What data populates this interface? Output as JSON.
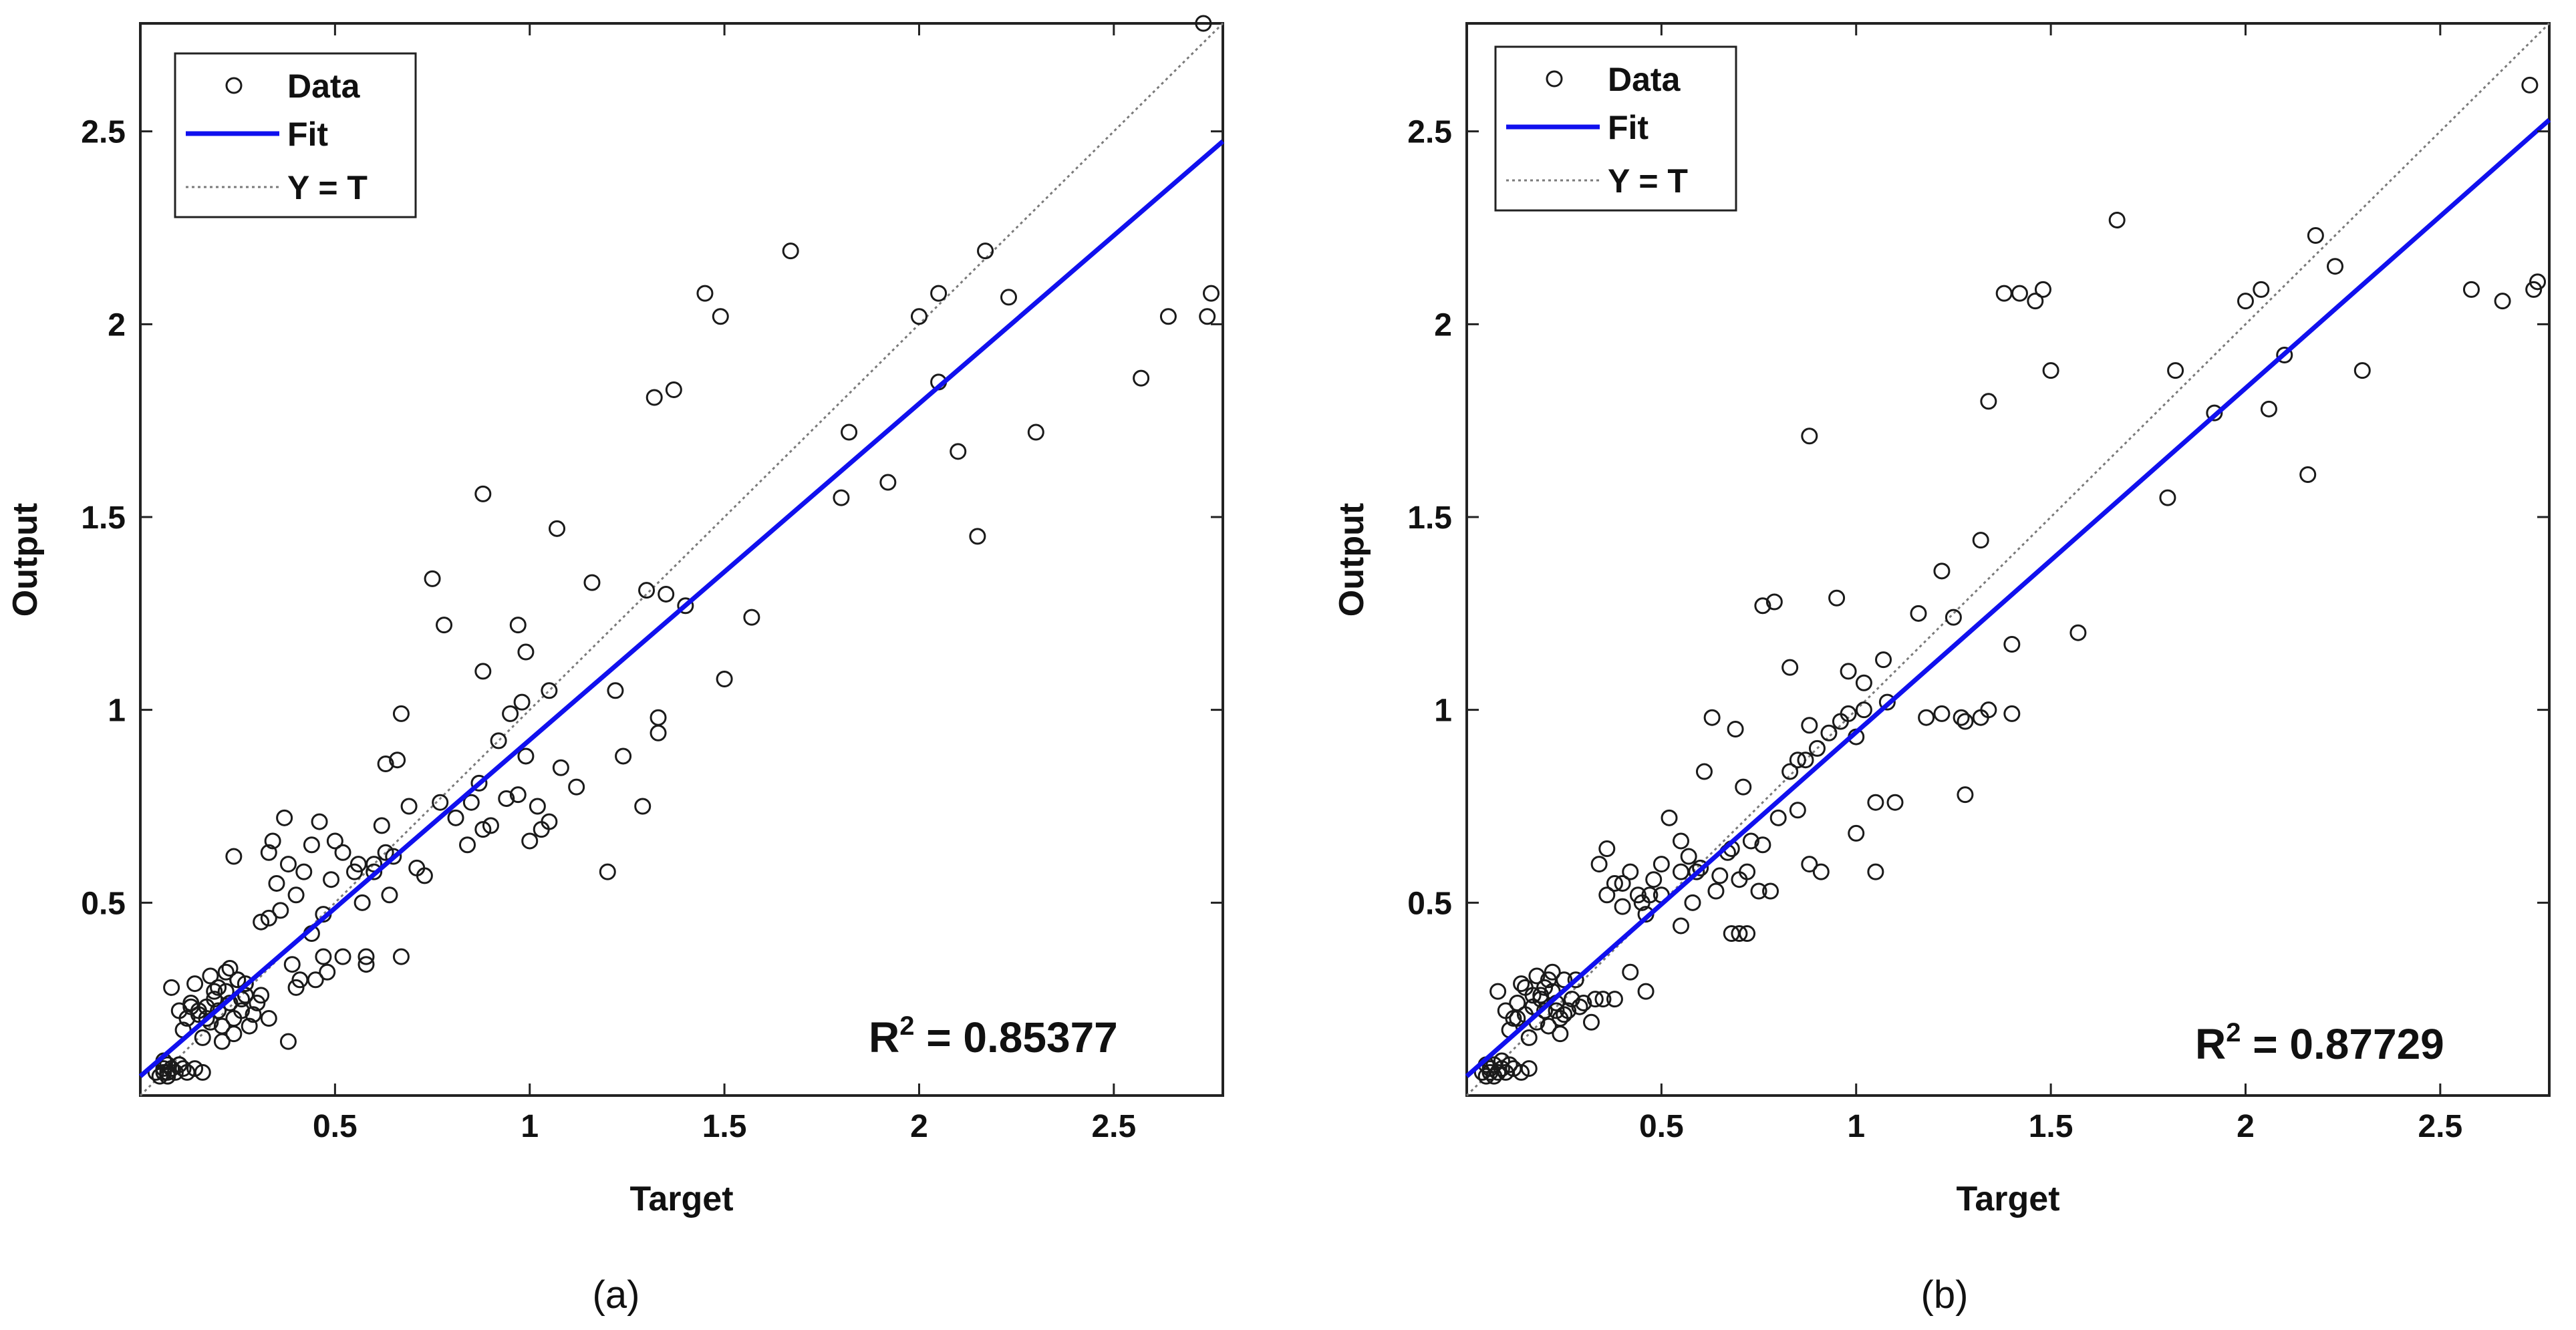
{
  "chart_data": [
    {
      "type": "scatter",
      "panel_label": "(a)",
      "xlabel": "Target",
      "ylabel": "Output",
      "xlim": [
        0,
        2.78
      ],
      "ylim": [
        0,
        2.78
      ],
      "x_ticks": [
        0.5,
        1,
        1.5,
        2,
        2.5
      ],
      "y_ticks": [
        0.5,
        1,
        1.5,
        2,
        2.5
      ],
      "x_tick_labels": [
        "0.5",
        "1",
        "1.5",
        "2",
        "2.5"
      ],
      "y_tick_labels": [
        "0.5",
        "1",
        "1.5",
        "2",
        "2.5"
      ],
      "legend": {
        "position": "top-left",
        "entries": [
          "Data",
          "Fit",
          "Y = T"
        ]
      },
      "annotation": {
        "prefix": "R",
        "superscript": "2",
        "value_text": " = 0.85377"
      },
      "fit": {
        "slope": 0.872,
        "intercept": 0.05
      },
      "identity_line": true,
      "colors": {
        "data": "#1a1a1a",
        "fit": "#1010ee",
        "identity": "#7a7a7a"
      },
      "series": [
        {
          "name": "Data",
          "x": [
            0.04,
            0.05,
            0.06,
            0.06,
            0.07,
            0.07,
            0.08,
            0.09,
            0.1,
            0.11,
            0.12,
            0.14,
            0.16,
            0.06,
            0.08,
            0.1,
            0.07,
            0.08,
            0.1,
            0.12,
            0.13,
            0.15,
            0.17,
            0.18,
            0.19,
            0.2,
            0.21,
            0.22,
            0.23,
            0.24,
            0.25,
            0.26,
            0.27,
            0.28,
            0.11,
            0.14,
            0.16,
            0.18,
            0.2,
            0.22,
            0.24,
            0.26,
            0.13,
            0.17,
            0.21,
            0.25,
            0.29,
            0.31,
            0.19,
            0.15,
            0.23,
            0.27,
            0.3,
            0.33,
            0.24,
            0.33,
            0.35,
            0.36,
            0.38,
            0.4,
            0.31,
            0.34,
            0.37,
            0.42,
            0.44,
            0.46,
            0.39,
            0.41,
            0.44,
            0.47,
            0.5,
            0.52,
            0.55,
            0.57,
            0.58,
            0.6,
            0.63,
            0.65,
            0.67,
            0.69,
            0.71,
            0.48,
            0.52,
            0.56,
            0.62,
            0.66,
            0.6,
            0.64,
            0.73,
            0.77,
            0.81,
            0.84,
            0.87,
            0.9,
            0.92,
            0.95,
            0.97,
            0.99,
            1.02,
            1.05,
            1.08,
            0.38,
            0.33,
            0.4,
            0.45,
            0.47,
            0.49,
            0.58,
            0.67,
            0.85,
            0.88,
            0.94,
            1.0,
            1.03,
            1.12,
            1.2,
            0.75,
            0.88,
            0.99,
            1.05,
            1.16,
            1.22,
            1.33,
            1.4,
            0.78,
            0.97,
            1.07,
            1.3,
            0.98,
            1.24,
            1.29,
            1.33,
            1.35,
            1.5,
            1.57,
            1.32,
            1.37,
            1.45,
            1.49,
            1.67,
            1.8,
            1.82,
            1.92,
            2.0,
            2.05,
            2.05,
            2.1,
            2.15,
            2.17,
            2.23,
            2.3,
            2.57,
            2.64,
            2.74,
            2.75,
            2.73,
            0.88,
            0.63
          ],
          "y": [
            0.06,
            0.05,
            0.07,
            0.06,
            0.08,
            0.06,
            0.07,
            0.06,
            0.08,
            0.07,
            0.06,
            0.07,
            0.06,
            0.09,
            0.07,
            0.08,
            0.05,
            0.28,
            0.22,
            0.2,
            0.24,
            0.21,
            0.23,
            0.19,
            0.25,
            0.22,
            0.18,
            0.27,
            0.24,
            0.2,
            0.3,
            0.22,
            0.26,
            0.18,
            0.17,
            0.29,
            0.15,
            0.31,
            0.28,
            0.32,
            0.16,
            0.25,
            0.23,
            0.2,
            0.14,
            0.3,
            0.21,
            0.26,
            0.27,
            0.22,
            0.33,
            0.29,
            0.24,
            0.2,
            0.62,
            0.63,
            0.55,
            0.48,
            0.6,
            0.52,
            0.45,
            0.66,
            0.72,
            0.58,
            0.65,
            0.71,
            0.34,
            0.3,
            0.42,
            0.36,
            0.66,
            0.63,
            0.58,
            0.5,
            0.34,
            0.6,
            0.86,
            0.62,
            0.99,
            0.75,
            0.59,
            0.32,
            0.36,
            0.6,
            0.7,
            0.87,
            0.58,
            0.52,
            0.57,
            0.76,
            0.72,
            0.65,
            0.81,
            0.7,
            0.92,
            0.99,
            0.78,
            0.88,
            0.75,
            0.71,
            0.85,
            0.14,
            0.46,
            0.28,
            0.3,
            0.47,
            0.56,
            0.36,
            0.36,
            0.76,
            0.69,
            0.77,
            0.66,
            0.69,
            0.8,
            0.58,
            1.34,
            1.1,
            1.15,
            1.05,
            1.33,
            1.05,
            0.98,
            1.27,
            1.22,
            1.22,
            1.47,
            1.31,
            1.02,
            0.88,
            0.75,
            0.94,
            1.3,
            1.08,
            1.24,
            1.81,
            1.83,
            2.08,
            2.02,
            2.19,
            1.55,
            1.72,
            1.59,
            2.02,
            2.08,
            1.85,
            1.67,
            1.45,
            2.19,
            2.07,
            1.72,
            1.86,
            2.02,
            2.02,
            2.08,
            2.78,
            1.56,
            0.63
          ]
        }
      ]
    },
    {
      "type": "scatter",
      "panel_label": "(b)",
      "xlabel": "Target",
      "ylabel": "Output",
      "xlim": [
        0,
        2.78
      ],
      "ylim": [
        0,
        2.78
      ],
      "x_ticks": [
        0.5,
        1,
        1.5,
        2,
        2.5
      ],
      "y_ticks": [
        0.5,
        1,
        1.5,
        2,
        2.5
      ],
      "x_tick_labels": [
        "0.5",
        "1",
        "1.5",
        "2",
        "2.5"
      ],
      "y_tick_labels": [
        "0.5",
        "1",
        "1.5",
        "2",
        "2.5"
      ],
      "legend": {
        "position": "top-left",
        "entries": [
          "Data",
          "Fit",
          "Y = T"
        ]
      },
      "annotation": {
        "prefix": "R",
        "superscript": "2",
        "value_text": " = 0.87729"
      },
      "fit": {
        "slope": 0.892,
        "intercept": 0.05
      },
      "identity_line": true,
      "colors": {
        "data": "#1a1a1a",
        "fit": "#1010ee",
        "identity": "#7a7a7a"
      },
      "series": [
        {
          "name": "Data",
          "x": [
            0.04,
            0.05,
            0.06,
            0.06,
            0.07,
            0.08,
            0.09,
            0.1,
            0.11,
            0.12,
            0.14,
            0.16,
            0.07,
            0.09,
            0.05,
            0.08,
            0.1,
            0.12,
            0.13,
            0.15,
            0.17,
            0.18,
            0.19,
            0.2,
            0.21,
            0.22,
            0.23,
            0.24,
            0.25,
            0.26,
            0.11,
            0.14,
            0.16,
            0.18,
            0.2,
            0.22,
            0.24,
            0.27,
            0.29,
            0.13,
            0.17,
            0.21,
            0.25,
            0.3,
            0.32,
            0.19,
            0.15,
            0.23,
            0.28,
            0.33,
            0.34,
            0.36,
            0.38,
            0.4,
            0.42,
            0.44,
            0.46,
            0.48,
            0.5,
            0.52,
            0.55,
            0.57,
            0.59,
            0.61,
            0.63,
            0.65,
            0.67,
            0.69,
            0.71,
            0.73,
            0.36,
            0.4,
            0.45,
            0.5,
            0.55,
            0.6,
            0.68,
            0.72,
            0.7,
            0.75,
            0.78,
            0.8,
            0.83,
            0.85,
            0.87,
            0.9,
            0.93,
            0.96,
            0.98,
            1.0,
            1.02,
            1.05,
            1.08,
            0.35,
            0.38,
            0.42,
            0.46,
            0.47,
            0.55,
            0.58,
            0.64,
            0.68,
            0.7,
            0.72,
            0.76,
            0.85,
            0.88,
            0.91,
            1.0,
            1.05,
            1.1,
            1.18,
            1.22,
            1.25,
            1.32,
            1.4,
            0.76,
            0.79,
            0.83,
            0.88,
            0.95,
            0.98,
            1.02,
            1.07,
            1.28,
            1.32,
            1.34,
            1.5,
            1.27,
            1.16,
            1.22,
            1.28,
            1.4,
            1.57,
            1.42,
            1.46,
            1.48,
            1.38,
            1.34,
            1.67,
            1.8,
            1.82,
            1.92,
            2.0,
            2.04,
            2.06,
            2.1,
            2.16,
            2.18,
            2.23,
            2.3,
            2.58,
            2.66,
            2.74,
            2.75,
            2.73,
            0.88
          ],
          "y": [
            0.06,
            0.05,
            0.07,
            0.06,
            0.08,
            0.06,
            0.07,
            0.06,
            0.08,
            0.07,
            0.06,
            0.07,
            0.05,
            0.09,
            0.08,
            0.27,
            0.22,
            0.2,
            0.24,
            0.21,
            0.23,
            0.19,
            0.25,
            0.22,
            0.18,
            0.27,
            0.24,
            0.2,
            0.3,
            0.22,
            0.17,
            0.29,
            0.15,
            0.31,
            0.28,
            0.32,
            0.16,
            0.25,
            0.23,
            0.2,
            0.26,
            0.3,
            0.21,
            0.24,
            0.19,
            0.26,
            0.28,
            0.22,
            0.3,
            0.25,
            0.6,
            0.64,
            0.55,
            0.49,
            0.58,
            0.52,
            0.47,
            0.56,
            0.6,
            0.72,
            0.66,
            0.62,
            0.58,
            0.84,
            0.98,
            0.57,
            0.63,
            0.95,
            0.8,
            0.66,
            0.52,
            0.55,
            0.5,
            0.52,
            0.44,
            0.59,
            0.42,
            0.42,
            0.42,
            0.53,
            0.53,
            0.72,
            0.84,
            0.74,
            0.87,
            0.9,
            0.94,
            0.97,
            0.99,
            0.93,
            1.0,
            0.76,
            1.02,
            0.25,
            0.25,
            0.32,
            0.27,
            0.52,
            0.58,
            0.5,
            0.53,
            0.64,
            0.56,
            0.58,
            0.65,
            0.87,
            0.6,
            0.58,
            0.68,
            0.58,
            0.76,
            0.98,
            0.99,
            1.24,
            0.98,
            1.17,
            1.27,
            1.28,
            1.11,
            0.96,
            1.29,
            1.1,
            1.07,
            1.13,
            0.78,
            1.44,
            1.0,
            1.88,
            0.98,
            1.25,
            1.36,
            0.97,
            0.99,
            1.2,
            2.08,
            2.06,
            2.09,
            2.08,
            1.8,
            2.27,
            1.55,
            1.88,
            1.77,
            2.06,
            2.09,
            1.78,
            1.92,
            1.61,
            2.23,
            2.15,
            1.88,
            2.09,
            2.06,
            2.09,
            2.11,
            2.62,
            1.71
          ]
        }
      ]
    }
  ]
}
